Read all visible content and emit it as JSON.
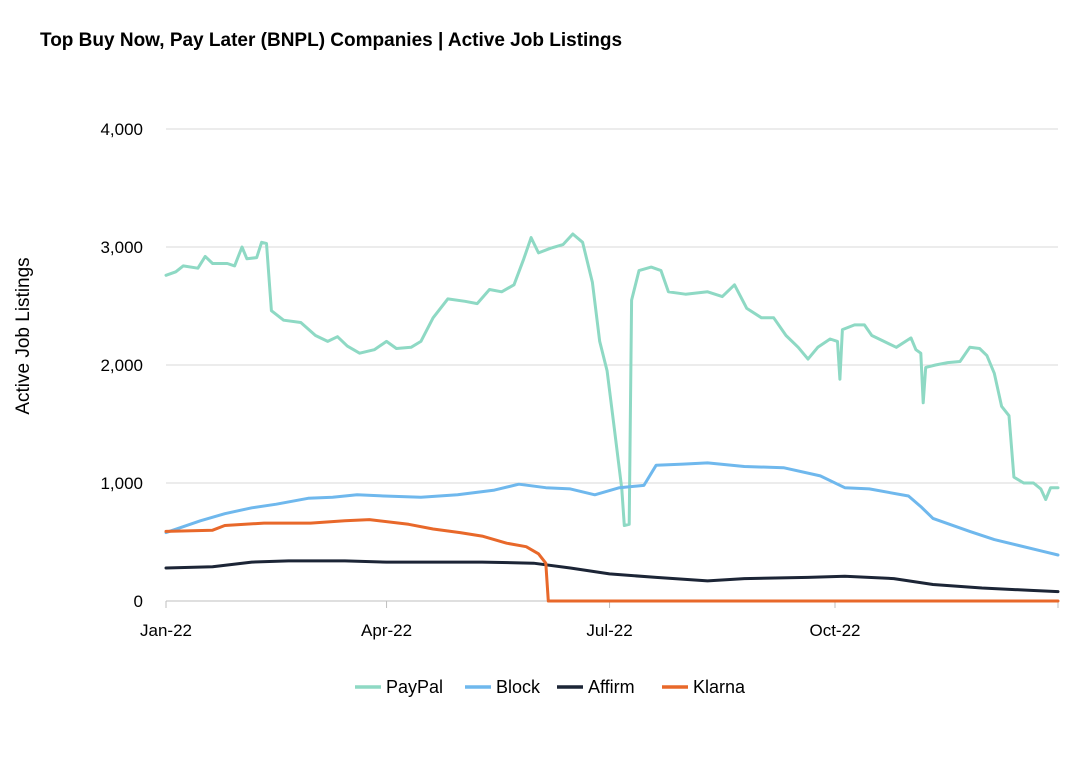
{
  "chart_data": {
    "type": "line",
    "title": "Top Buy Now, Pay Later (BNPL) Companies | Active Job Listings",
    "ylabel": "Active Job Listings",
    "xlabel": "",
    "ylim": [
      0,
      4000
    ],
    "yticks": [
      0,
      1000,
      2000,
      3000,
      4000
    ],
    "ytick_labels": [
      "0",
      "1,000",
      "2,000",
      "3,000",
      "4,000"
    ],
    "xlim": [
      "2022-01-01",
      "2022-12-31"
    ],
    "xticks": [
      "2022-01-01",
      "2022-04-01",
      "2022-07-01",
      "2022-10-01"
    ],
    "xtick_labels": [
      "Jan-22",
      "Apr-22",
      "Jul-22",
      "Oct-22"
    ],
    "grid": "horizontal",
    "legend_position": "bottom",
    "series": [
      {
        "name": "PayPal",
        "color": "#8ED9C4",
        "points": [
          [
            "2022-01-01",
            2760
          ],
          [
            "2022-01-05",
            2790
          ],
          [
            "2022-01-08",
            2840
          ],
          [
            "2022-01-14",
            2820
          ],
          [
            "2022-01-17",
            2920
          ],
          [
            "2022-01-20",
            2860
          ],
          [
            "2022-01-26",
            2860
          ],
          [
            "2022-01-29",
            2840
          ],
          [
            "2022-02-01",
            3000
          ],
          [
            "2022-02-03",
            2900
          ],
          [
            "2022-02-07",
            2910
          ],
          [
            "2022-02-09",
            3040
          ],
          [
            "2022-02-11",
            3030
          ],
          [
            "2022-02-13",
            2460
          ],
          [
            "2022-02-18",
            2380
          ],
          [
            "2022-02-25",
            2360
          ],
          [
            "2022-03-03",
            2250
          ],
          [
            "2022-03-08",
            2200
          ],
          [
            "2022-03-12",
            2240
          ],
          [
            "2022-03-16",
            2160
          ],
          [
            "2022-03-21",
            2100
          ],
          [
            "2022-03-27",
            2130
          ],
          [
            "2022-04-01",
            2200
          ],
          [
            "2022-04-05",
            2140
          ],
          [
            "2022-04-11",
            2150
          ],
          [
            "2022-04-15",
            2200
          ],
          [
            "2022-04-20",
            2400
          ],
          [
            "2022-04-26",
            2560
          ],
          [
            "2022-05-03",
            2540
          ],
          [
            "2022-05-08",
            2520
          ],
          [
            "2022-05-13",
            2640
          ],
          [
            "2022-05-18",
            2620
          ],
          [
            "2022-05-23",
            2680
          ],
          [
            "2022-05-27",
            2900
          ],
          [
            "2022-05-30",
            3080
          ],
          [
            "2022-06-02",
            2950
          ],
          [
            "2022-06-07",
            2990
          ],
          [
            "2022-06-12",
            3020
          ],
          [
            "2022-06-16",
            3110
          ],
          [
            "2022-06-20",
            3040
          ],
          [
            "2022-06-24",
            2700
          ],
          [
            "2022-06-27",
            2200
          ],
          [
            "2022-06-30",
            1950
          ],
          [
            "2022-07-03",
            1450
          ],
          [
            "2022-07-06",
            950
          ],
          [
            "2022-07-07",
            640
          ],
          [
            "2022-07-09",
            650
          ],
          [
            "2022-07-10",
            2550
          ],
          [
            "2022-07-13",
            2800
          ],
          [
            "2022-07-18",
            2830
          ],
          [
            "2022-07-22",
            2800
          ],
          [
            "2022-07-25",
            2620
          ],
          [
            "2022-08-01",
            2600
          ],
          [
            "2022-08-10",
            2620
          ],
          [
            "2022-08-16",
            2580
          ],
          [
            "2022-08-21",
            2680
          ],
          [
            "2022-08-26",
            2480
          ],
          [
            "2022-09-01",
            2400
          ],
          [
            "2022-09-06",
            2400
          ],
          [
            "2022-09-11",
            2250
          ],
          [
            "2022-09-16",
            2150
          ],
          [
            "2022-09-20",
            2050
          ],
          [
            "2022-09-24",
            2150
          ],
          [
            "2022-09-29",
            2220
          ],
          [
            "2022-10-02",
            2200
          ],
          [
            "2022-10-03",
            1880
          ],
          [
            "2022-10-04",
            2300
          ],
          [
            "2022-10-09",
            2340
          ],
          [
            "2022-10-13",
            2340
          ],
          [
            "2022-10-16",
            2250
          ],
          [
            "2022-10-21",
            2200
          ],
          [
            "2022-10-26",
            2150
          ],
          [
            "2022-11-01",
            2230
          ],
          [
            "2022-11-03",
            2130
          ],
          [
            "2022-11-05",
            2100
          ],
          [
            "2022-11-06",
            1680
          ],
          [
            "2022-11-07",
            1980
          ],
          [
            "2022-11-11",
            2000
          ],
          [
            "2022-11-16",
            2020
          ],
          [
            "2022-11-21",
            2030
          ],
          [
            "2022-11-25",
            2150
          ],
          [
            "2022-11-29",
            2140
          ],
          [
            "2022-12-02",
            2080
          ],
          [
            "2022-12-05",
            1930
          ],
          [
            "2022-12-08",
            1650
          ],
          [
            "2022-12-11",
            1570
          ],
          [
            "2022-12-13",
            1050
          ],
          [
            "2022-12-17",
            1000
          ],
          [
            "2022-12-21",
            1000
          ],
          [
            "2022-12-24",
            950
          ],
          [
            "2022-12-26",
            860
          ],
          [
            "2022-12-28",
            960
          ],
          [
            "2022-12-31",
            960
          ]
        ]
      },
      {
        "name": "Block",
        "color": "#6FB8ED",
        "points": [
          [
            "2022-01-01",
            580
          ],
          [
            "2022-01-08",
            630
          ],
          [
            "2022-01-15",
            680
          ],
          [
            "2022-01-25",
            740
          ],
          [
            "2022-02-05",
            790
          ],
          [
            "2022-02-15",
            820
          ],
          [
            "2022-02-28",
            870
          ],
          [
            "2022-03-10",
            880
          ],
          [
            "2022-03-20",
            900
          ],
          [
            "2022-03-31",
            890
          ],
          [
            "2022-04-15",
            880
          ],
          [
            "2022-04-30",
            900
          ],
          [
            "2022-05-15",
            940
          ],
          [
            "2022-05-25",
            990
          ],
          [
            "2022-06-05",
            960
          ],
          [
            "2022-06-15",
            950
          ],
          [
            "2022-06-25",
            900
          ],
          [
            "2022-07-05",
            960
          ],
          [
            "2022-07-15",
            980
          ],
          [
            "2022-07-20",
            1150
          ],
          [
            "2022-07-31",
            1160
          ],
          [
            "2022-08-10",
            1170
          ],
          [
            "2022-08-25",
            1140
          ],
          [
            "2022-09-10",
            1130
          ],
          [
            "2022-09-25",
            1060
          ],
          [
            "2022-10-05",
            960
          ],
          [
            "2022-10-15",
            950
          ],
          [
            "2022-10-31",
            890
          ],
          [
            "2022-11-05",
            800
          ],
          [
            "2022-11-10",
            700
          ],
          [
            "2022-11-25",
            590
          ],
          [
            "2022-12-05",
            520
          ],
          [
            "2022-12-15",
            470
          ],
          [
            "2022-12-25",
            420
          ],
          [
            "2022-12-31",
            390
          ]
        ]
      },
      {
        "name": "Affirm",
        "color": "#1C2536",
        "points": [
          [
            "2022-01-01",
            280
          ],
          [
            "2022-01-20",
            290
          ],
          [
            "2022-02-05",
            330
          ],
          [
            "2022-02-20",
            340
          ],
          [
            "2022-03-15",
            340
          ],
          [
            "2022-04-01",
            330
          ],
          [
            "2022-04-20",
            330
          ],
          [
            "2022-05-10",
            330
          ],
          [
            "2022-05-31",
            320
          ],
          [
            "2022-06-15",
            280
          ],
          [
            "2022-07-01",
            230
          ],
          [
            "2022-07-20",
            200
          ],
          [
            "2022-08-10",
            170
          ],
          [
            "2022-08-25",
            190
          ],
          [
            "2022-09-20",
            200
          ],
          [
            "2022-10-05",
            210
          ],
          [
            "2022-10-25",
            190
          ],
          [
            "2022-11-10",
            140
          ],
          [
            "2022-11-30",
            110
          ],
          [
            "2022-12-20",
            90
          ],
          [
            "2022-12-31",
            80
          ]
        ]
      },
      {
        "name": "Klarna",
        "color": "#E8682A",
        "points": [
          [
            "2022-01-01",
            590
          ],
          [
            "2022-01-20",
            600
          ],
          [
            "2022-01-25",
            640
          ],
          [
            "2022-02-10",
            660
          ],
          [
            "2022-03-01",
            660
          ],
          [
            "2022-03-15",
            680
          ],
          [
            "2022-03-25",
            690
          ],
          [
            "2022-04-10",
            650
          ],
          [
            "2022-04-20",
            610
          ],
          [
            "2022-05-01",
            580
          ],
          [
            "2022-05-10",
            550
          ],
          [
            "2022-05-20",
            490
          ],
          [
            "2022-05-28",
            460
          ],
          [
            "2022-06-02",
            400
          ],
          [
            "2022-06-05",
            320
          ],
          [
            "2022-06-06",
            0
          ],
          [
            "2022-12-31",
            0
          ]
        ]
      }
    ]
  }
}
